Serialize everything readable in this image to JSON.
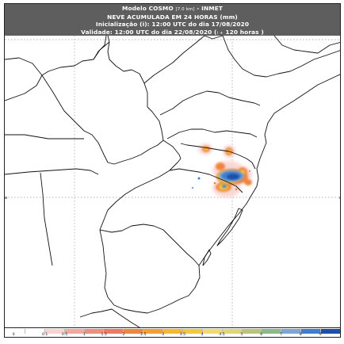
{
  "title": {
    "line1_main": "Modelo COSMO",
    "line1_small": "[7.0 km]",
    "line1_suffix": " - INMET",
    "line2": "NEVE ACUMULADA EM 24 HORAS (mm)",
    "line3": "Inicialização (i): 12:00 UTC do dia 17/08/2020",
    "line4_prefix": "Validade: 12:00 UTC do dia 22/08/2020 (",
    "line4_small": "i +",
    "line4_suffix": " 120 horas )"
  },
  "legend": {
    "labels": [
      "0",
      "0.1",
      "0.5",
      "1",
      "1.5",
      "2",
      "2.5",
      "3",
      "3.5",
      "4",
      "4.5",
      "5",
      "6",
      "7",
      "8",
      "9"
    ],
    "colors": [
      "#ffffff",
      "#ffffff",
      "#f8d4d0",
      "#f1a99f",
      "#ec8f7c",
      "#ee7a5f",
      "#f1843e",
      "#f3a030",
      "#f5b82e",
      "#f2c93c",
      "#eeda6e",
      "#dcd878",
      "#b8c477",
      "#8eb88c",
      "#7aa7d6",
      "#3f7fd0",
      "#1f4fa8"
    ]
  },
  "map": {
    "background": "#ffffff",
    "boundary_color": "#111111",
    "grid_color": "#9a9a9a",
    "snow_colors": {
      "light": "#f8d4d0",
      "orange": "#f1843e",
      "yellow": "#f2c93c",
      "blue_light": "#7aa7d6",
      "blue_mid": "#3f7fd0",
      "blue_dark": "#1f4fa8"
    }
  }
}
